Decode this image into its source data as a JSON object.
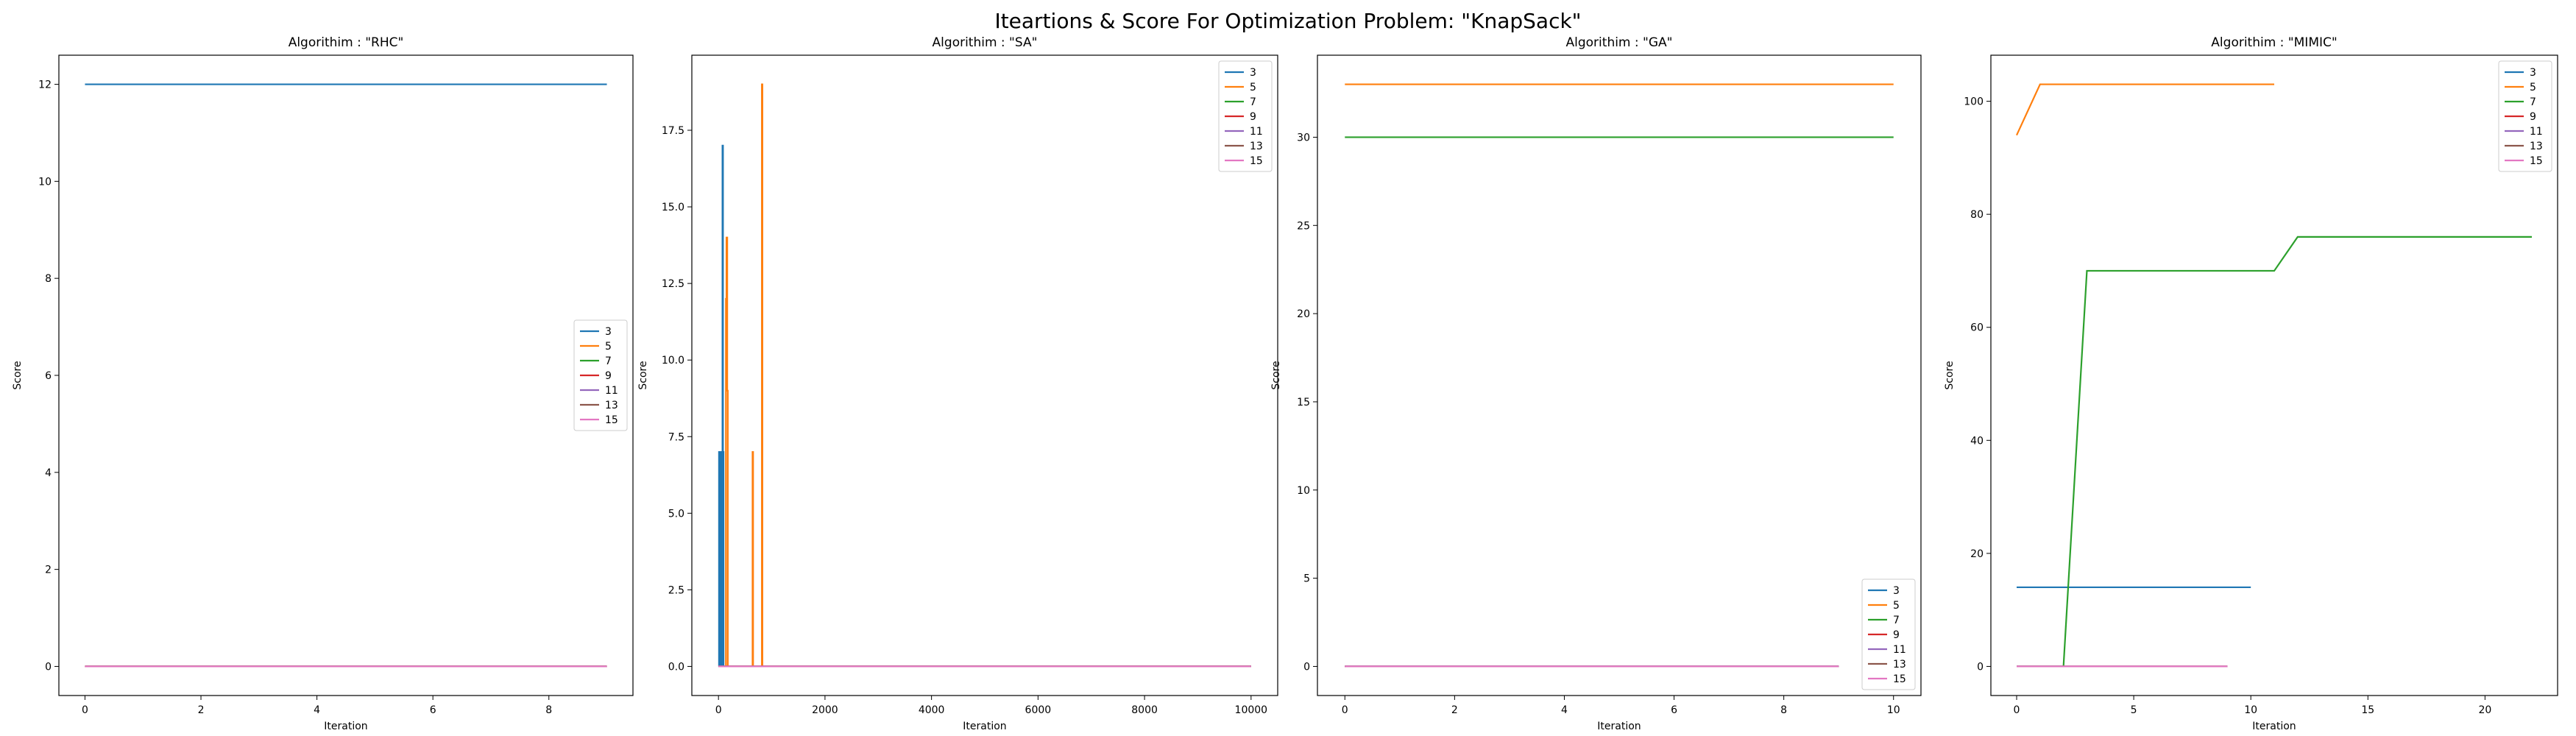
{
  "suptitle": "Iteartions & Score For Optimization Problem: \"KnapSack\"",
  "colors": {
    "3": "#1f77b4",
    "5": "#ff7f0e",
    "7": "#2ca02c",
    "9": "#d62728",
    "11": "#9467bd",
    "13": "#8c564b",
    "15": "#e377c2"
  },
  "chart_data": [
    {
      "type": "line",
      "title": "Algorithim : \"RHC\"",
      "xlabel": "Iteration",
      "ylabel": "Score",
      "xlim": [
        -0.45,
        9.45
      ],
      "ylim": [
        -0.6,
        12.6
      ],
      "xticks": [
        0,
        2,
        4,
        6,
        8
      ],
      "yticks": [
        0,
        2,
        4,
        6,
        8,
        10,
        12
      ],
      "legend_loc": "center-right",
      "series": [
        {
          "name": "3",
          "x": [
            0,
            9
          ],
          "y": [
            12,
            12
          ]
        },
        {
          "name": "5",
          "x": [
            0,
            9
          ],
          "y": [
            0,
            0
          ]
        },
        {
          "name": "7",
          "x": [
            0,
            9
          ],
          "y": [
            0,
            0
          ]
        },
        {
          "name": "9",
          "x": [
            0,
            9
          ],
          "y": [
            0,
            0
          ]
        },
        {
          "name": "11",
          "x": [
            0,
            9
          ],
          "y": [
            0,
            0
          ]
        },
        {
          "name": "13",
          "x": [
            0,
            9
          ],
          "y": [
            0,
            0
          ]
        },
        {
          "name": "15",
          "x": [
            0,
            9
          ],
          "y": [
            0,
            0
          ]
        }
      ]
    },
    {
      "type": "line",
      "title": "Algorithim : \"SA\"",
      "xlabel": "Iteration",
      "ylabel": "Score",
      "xlim": [
        -500,
        10500
      ],
      "ylim": [
        -0.95,
        19.95
      ],
      "xticks": [
        0,
        2000,
        4000,
        6000,
        8000,
        10000
      ],
      "yticks": [
        0.0,
        2.5,
        5.0,
        7.5,
        10.0,
        12.5,
        15.0,
        17.5
      ],
      "ytick_labels": [
        "0.0",
        "2.5",
        "5.0",
        "7.5",
        "10.0",
        "12.5",
        "15.0",
        "17.5"
      ],
      "legend_loc": "top-right",
      "series": [
        {
          "name": "3",
          "x": [
            0,
            10,
            10,
            20,
            20,
            30,
            30,
            40,
            40,
            50,
            50,
            60,
            60,
            75,
            75,
            85,
            85,
            95,
            95,
            10000
          ],
          "y": [
            0,
            0,
            7,
            7,
            0,
            0,
            7,
            7,
            0,
            0,
            7,
            7,
            0,
            0,
            17,
            17,
            7,
            7,
            0,
            0
          ]
        },
        {
          "name": "5",
          "x": [
            0,
            140,
            140,
            150,
            150,
            165,
            165,
            175,
            175,
            640,
            640,
            650,
            650,
            815,
            815,
            825,
            825,
            10000
          ],
          "y": [
            0,
            0,
            12,
            12,
            14,
            14,
            9,
            9,
            0,
            0,
            7,
            7,
            0,
            0,
            19,
            19,
            0,
            0
          ]
        },
        {
          "name": "7",
          "x": [
            0,
            10000
          ],
          "y": [
            0,
            0
          ]
        },
        {
          "name": "9",
          "x": [
            0,
            10000
          ],
          "y": [
            0,
            0
          ]
        },
        {
          "name": "11",
          "x": [
            0,
            10000
          ],
          "y": [
            0,
            0
          ]
        },
        {
          "name": "13",
          "x": [
            0,
            10000
          ],
          "y": [
            0,
            0
          ]
        },
        {
          "name": "15",
          "x": [
            0,
            10000
          ],
          "y": [
            0,
            0
          ]
        }
      ]
    },
    {
      "type": "line",
      "title": "Algorithim : \"GA\"",
      "xlabel": "Iteration",
      "ylabel": "Score",
      "xlim": [
        -0.5,
        10.5
      ],
      "ylim": [
        -1.65,
        34.65
      ],
      "xticks": [
        0,
        2,
        4,
        6,
        8,
        10
      ],
      "yticks": [
        0,
        5,
        10,
        15,
        20,
        25,
        30
      ],
      "legend_loc": "bottom-right",
      "series": [
        {
          "name": "3",
          "x": [
            0,
            9
          ],
          "y": [
            0,
            0
          ]
        },
        {
          "name": "5",
          "x": [
            0,
            10
          ],
          "y": [
            33,
            33
          ]
        },
        {
          "name": "7",
          "x": [
            0,
            10
          ],
          "y": [
            30,
            30
          ]
        },
        {
          "name": "9",
          "x": [
            0,
            9
          ],
          "y": [
            0,
            0
          ]
        },
        {
          "name": "11",
          "x": [
            0,
            9
          ],
          "y": [
            0,
            0
          ]
        },
        {
          "name": "13",
          "x": [
            0,
            9
          ],
          "y": [
            0,
            0
          ]
        },
        {
          "name": "15",
          "x": [
            0,
            9
          ],
          "y": [
            0,
            0
          ]
        }
      ]
    },
    {
      "type": "line",
      "title": "Algorithim : \"MIMIC\"",
      "xlabel": "Iteration",
      "ylabel": "Score",
      "xlim": [
        -1.1,
        23.1
      ],
      "ylim": [
        -5.15,
        108.15
      ],
      "xticks": [
        0,
        5,
        10,
        15,
        20
      ],
      "yticks": [
        0,
        20,
        40,
        60,
        80,
        100
      ],
      "legend_loc": "top-right",
      "series": [
        {
          "name": "3",
          "x": [
            0,
            10
          ],
          "y": [
            14,
            14
          ]
        },
        {
          "name": "5",
          "x": [
            0,
            1,
            11
          ],
          "y": [
            94,
            103,
            103
          ]
        },
        {
          "name": "7",
          "x": [
            0,
            2,
            3,
            11,
            12,
            22
          ],
          "y": [
            0,
            0,
            70,
            70,
            76,
            76
          ]
        },
        {
          "name": "9",
          "x": [
            0,
            9
          ],
          "y": [
            0,
            0
          ]
        },
        {
          "name": "11",
          "x": [
            0,
            9
          ],
          "y": [
            0,
            0
          ]
        },
        {
          "name": "13",
          "x": [
            0,
            9
          ],
          "y": [
            0,
            0
          ]
        },
        {
          "name": "15",
          "x": [
            0,
            9
          ],
          "y": [
            0,
            0
          ]
        }
      ]
    }
  ]
}
